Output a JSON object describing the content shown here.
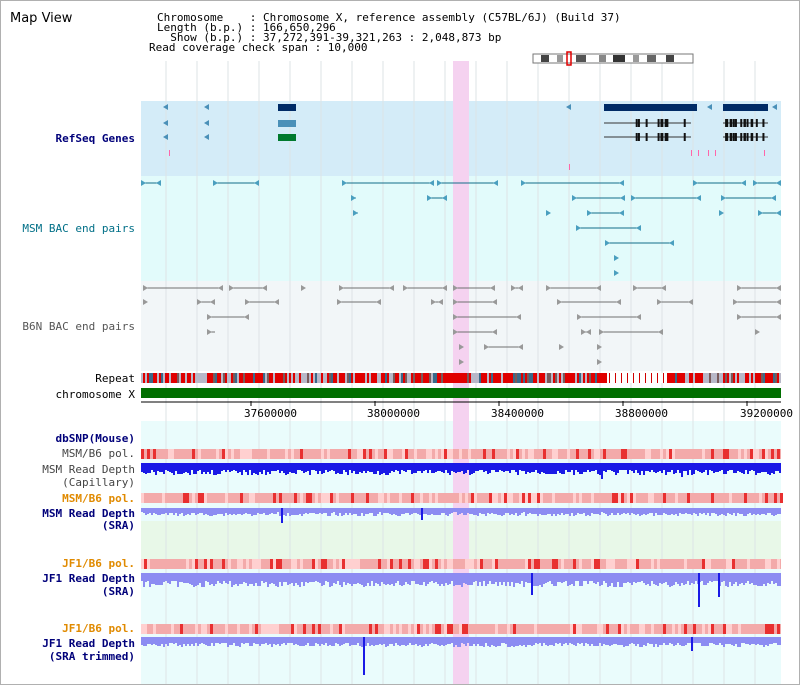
{
  "view": {
    "title": "Map View"
  },
  "header": {
    "chromosome_line": "Chromosome    : Chromosome X, reference assembly (C57BL/6J) (Build 37)",
    "length_line": "Length (b.p.) : 166,650,296",
    "show_line": "  Show (b.p.) : 37,272,391-39,321,263 : 2,048,873 bp",
    "span_line": "Read coverage check span : 10,000"
  },
  "tracks": {
    "refseq": "RefSeq Genes",
    "msm_bac": "MSM BAC end pairs",
    "b6n_bac": "B6N BAC end pairs",
    "repeat": "Repeat",
    "chromosome": "chromosome X",
    "dbsnp": "dbSNP(Mouse)",
    "msm_b6_pol_1": "MSM/B6 pol.",
    "msm_depth_cap_1": "MSM Read Depth",
    "msm_depth_cap_2": "(Capillary)",
    "msm_b6_pol_2": "MSM/B6 pol.",
    "msm_depth_sra_1": "MSM Read Depth",
    "msm_depth_sra_2": "(SRA)",
    "jf1_b6_pol_1": "JF1/B6 pol.",
    "jf1_depth_sra_1": "JF1 Read Depth",
    "jf1_depth_sra_2": "(SRA)",
    "jf1_b6_pol_2": "JF1/B6 pol.",
    "jf1_depth_trim_1": "JF1 Read Depth",
    "jf1_depth_trim_2": "(SRA trimmed)"
  },
  "axis": {
    "ticks": [
      "37600000",
      "38000000",
      "38400000",
      "38800000",
      "39200000"
    ]
  },
  "colors": {
    "refseq_bg": "#d4ecf8",
    "bac_bg": "#e2fbfb",
    "b6n_bg": "#f2f6f8",
    "highlight": "#f5d2f0",
    "gene_dark": "#002b66",
    "gene_mid": "#4a90b8",
    "gene_green": "#007a2e",
    "msm_feature": "#136d8a",
    "b6n_feature": "#707070",
    "chromosome_bar": "#006e00",
    "depth_dark": "#1a1ae6",
    "depth_light": "#8c8cf2",
    "pol_base": "#f3aaaa"
  }
}
